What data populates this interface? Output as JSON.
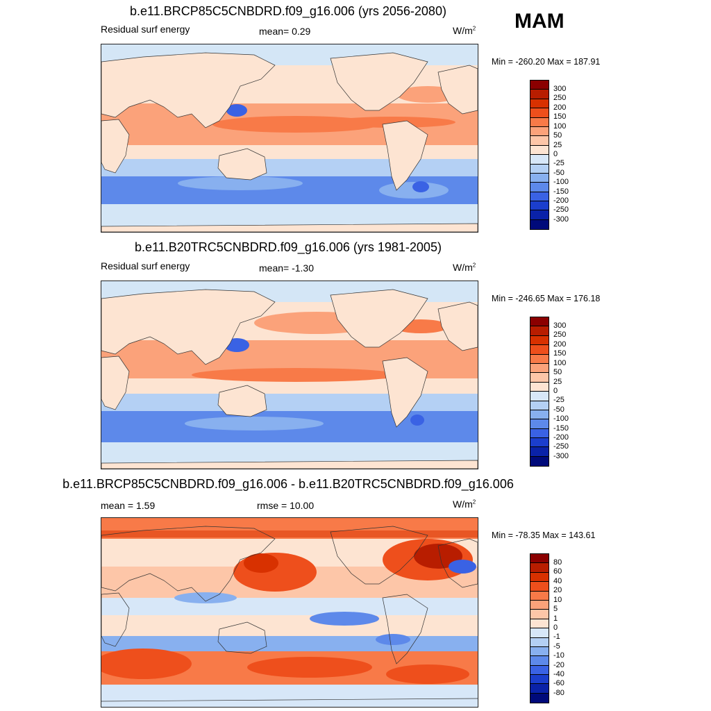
{
  "season": "MAM",
  "panels": [
    {
      "title": "b.e11.BRCP85C5CNBDRD.f09_g16.006 (yrs 2056-2080)",
      "left_label": "Residual surf energy",
      "center_label": "mean=   0.29",
      "units_base": "W/m",
      "units_exp": "2",
      "minmax": "Min = -260.20 Max = 187.91",
      "colorbar": {
        "labels": [
          "300",
          "250",
          "200",
          "150",
          "100",
          "50",
          "25",
          "0",
          "-25",
          "-50",
          "-100",
          "-150",
          "-200",
          "-250",
          "-300"
        ],
        "colors": [
          "#8b0000",
          "#b81d00",
          "#d83100",
          "#ee4f1c",
          "#f87a48",
          "#fba27a",
          "#fdc6a8",
          "#fde4d2",
          "#d7e7f8",
          "#b4d0f4",
          "#88b0ef",
          "#5d89ea",
          "#3a62e4",
          "#1b3ecd",
          "#0a22a8",
          "#000a7a"
        ]
      }
    },
    {
      "title": "b.e11.B20TRC5CNBDRD.f09_g16.006 (yrs 1981-2005)",
      "left_label": "Residual surf energy",
      "center_label": "mean=   -1.30",
      "units_base": "W/m",
      "units_exp": "2",
      "minmax": "Min = -246.65 Max = 176.18",
      "colorbar": {
        "labels": [
          "300",
          "250",
          "200",
          "150",
          "100",
          "50",
          "25",
          "0",
          "-25",
          "-50",
          "-100",
          "-150",
          "-200",
          "-250",
          "-300"
        ],
        "colors": [
          "#8b0000",
          "#b81d00",
          "#d83100",
          "#ee4f1c",
          "#f87a48",
          "#fba27a",
          "#fdc6a8",
          "#fde4d2",
          "#d7e7f8",
          "#b4d0f4",
          "#88b0ef",
          "#5d89ea",
          "#3a62e4",
          "#1b3ecd",
          "#0a22a8",
          "#000a7a"
        ]
      }
    },
    {
      "title": "b.e11.BRCP85C5CNBDRD.f09_g16.006 - b.e11.B20TRC5CNBDRD.f09_g16.006",
      "left_label": "mean =   1.59",
      "center_label": "rmse =  10.00",
      "units_base": "W/m",
      "units_exp": "2",
      "minmax": "Min = -78.35 Max = 143.61",
      "colorbar": {
        "labels": [
          "80",
          "60",
          "40",
          "20",
          "10",
          "5",
          "1",
          "0",
          "-1",
          "-5",
          "-10",
          "-20",
          "-40",
          "-60",
          "-80"
        ],
        "colors": [
          "#8b0000",
          "#b81d00",
          "#d83100",
          "#ee4f1c",
          "#f87a48",
          "#fba27a",
          "#fdc6a8",
          "#fde4d2",
          "#d7e7f8",
          "#b4d0f4",
          "#88b0ef",
          "#5d89ea",
          "#3a62e4",
          "#1b3ecd",
          "#0a22a8",
          "#000a7a"
        ]
      }
    }
  ]
}
